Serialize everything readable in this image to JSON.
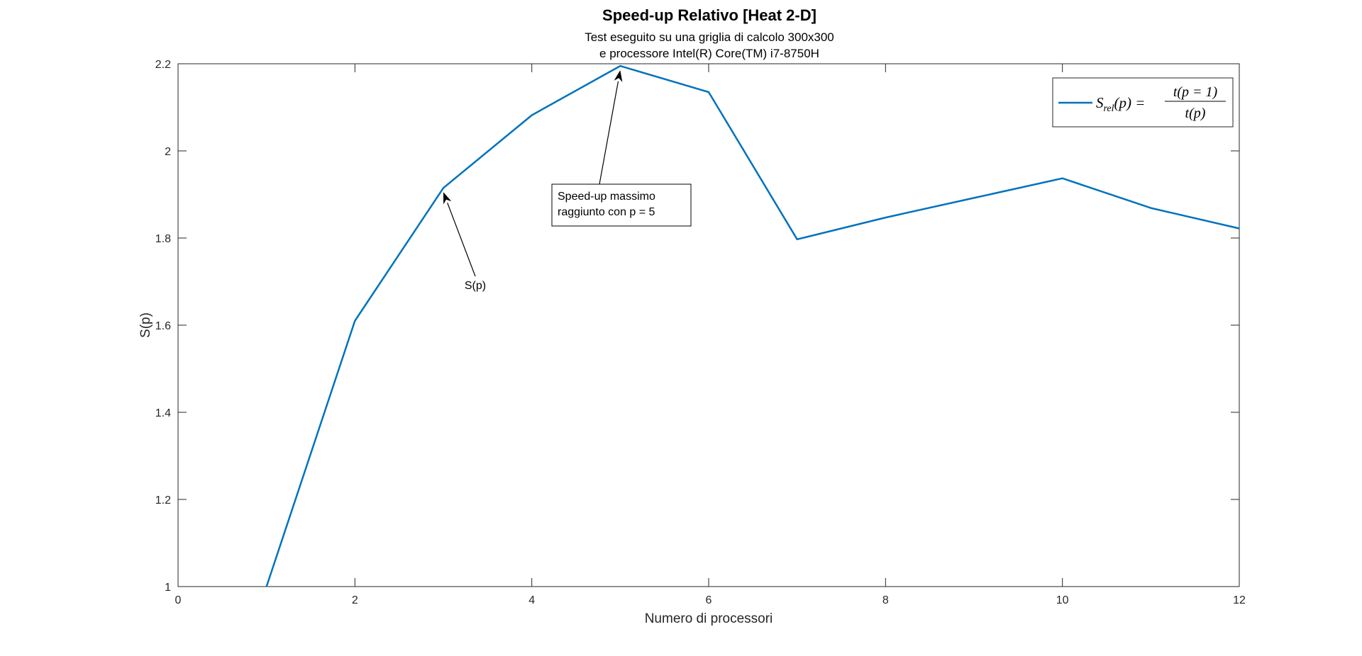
{
  "chart_data": {
    "type": "line",
    "title": "Speed-up Relativo [Heat 2-D]",
    "subtitle": [
      "Test eseguito su una griglia di calcolo 300x300",
      "e processore Intel(R) Core(TM) i7-8750H"
    ],
    "xlabel": "Numero di processori",
    "ylabel": "S(p)",
    "xlim": [
      0,
      12
    ],
    "ylim": [
      1,
      2.2
    ],
    "xticks": [
      0,
      2,
      4,
      6,
      8,
      10,
      12
    ],
    "yticks": [
      1,
      1.2,
      1.4,
      1.6,
      1.8,
      2,
      2.2
    ],
    "grid": false,
    "legend_position": "top-right",
    "series": [
      {
        "color": "#0072BD",
        "x": [
          1,
          2,
          3,
          4,
          5,
          6,
          7,
          8,
          9,
          10,
          11,
          12
        ],
        "y": [
          1.0,
          1.61,
          1.915,
          2.082,
          2.195,
          2.135,
          1.797,
          1.847,
          1.892,
          1.937,
          1.869,
          1.822
        ]
      }
    ],
    "legend": {
      "lhs_base": "S",
      "lhs_sub": "rel",
      "lhs_arg": "(p) =",
      "numerator": "t(p = 1)",
      "denominator": "t(p)"
    },
    "annotations": [
      {
        "text": "S(p)",
        "target_x": 3,
        "target_y": 1.915,
        "boxed": false
      },
      {
        "text": [
          "Speed-up massimo",
          "raggiunto con p = 5"
        ],
        "target_x": 5,
        "target_y": 2.195,
        "boxed": true
      }
    ]
  }
}
